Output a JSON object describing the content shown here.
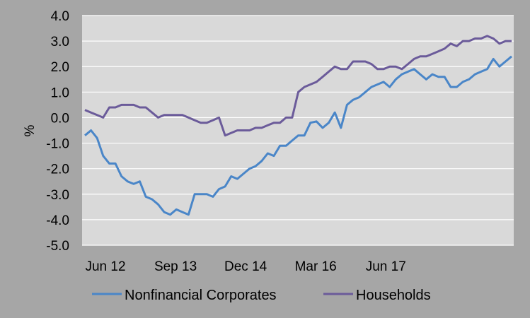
{
  "chart_data": {
    "type": "line",
    "ylabel": "%",
    "xlabel": "",
    "ylim": [
      -5.0,
      4.0
    ],
    "yticks": [
      "4.0",
      "3.0",
      "2.0",
      "1.0",
      "0.0",
      "-1.0",
      "-2.0",
      "-3.0",
      "-4.0",
      "-5.0"
    ],
    "xticks": [
      "Jun 12",
      "Sep 13",
      "Dec 14",
      "Mar 16",
      "Jun 17"
    ],
    "grid": "horizontal",
    "legend_position": "bottom",
    "colors": {
      "background": "#a6a6a6",
      "plot_area": "#d9d9d9",
      "gridline": "#ffffff"
    },
    "series": [
      {
        "name": "Nonfinancial Corporates",
        "color": "#4a86c8",
        "values": [
          -0.7,
          -0.5,
          -0.8,
          -1.5,
          -1.8,
          -1.8,
          -2.3,
          -2.5,
          -2.6,
          -2.5,
          -3.1,
          -3.2,
          -3.4,
          -3.7,
          -3.8,
          -3.6,
          -3.7,
          -3.8,
          -3.0,
          -3.0,
          -3.0,
          -3.1,
          -2.8,
          -2.7,
          -2.3,
          -2.4,
          -2.2,
          -2.0,
          -1.9,
          -1.7,
          -1.4,
          -1.5,
          -1.1,
          -1.1,
          -0.9,
          -0.7,
          -0.7,
          -0.2,
          -0.15,
          -0.4,
          -0.2,
          0.2,
          -0.4,
          0.5,
          0.7,
          0.8,
          1.0,
          1.2,
          1.3,
          1.4,
          1.2,
          1.5,
          1.7,
          1.8,
          1.9,
          1.7,
          1.5,
          1.7,
          1.6,
          1.6,
          1.2,
          1.2,
          1.4,
          1.5,
          1.7,
          1.8,
          1.9,
          2.3,
          2.0,
          2.2,
          2.4
        ]
      },
      {
        "name": "Households",
        "color": "#6b5b9a",
        "values": [
          0.3,
          0.2,
          0.1,
          0.0,
          0.4,
          0.4,
          0.5,
          0.5,
          0.5,
          0.4,
          0.4,
          0.2,
          0.0,
          0.1,
          0.1,
          0.1,
          0.1,
          0.0,
          -0.1,
          -0.2,
          -0.2,
          -0.1,
          0.0,
          -0.7,
          -0.6,
          -0.5,
          -0.5,
          -0.5,
          -0.4,
          -0.4,
          -0.3,
          -0.2,
          -0.2,
          0.0,
          0.0,
          1.0,
          1.2,
          1.3,
          1.4,
          1.6,
          1.8,
          2.0,
          1.9,
          1.9,
          2.2,
          2.2,
          2.2,
          2.1,
          1.9,
          1.9,
          2.0,
          2.0,
          1.9,
          2.1,
          2.3,
          2.4,
          2.4,
          2.5,
          2.6,
          2.7,
          2.9,
          2.8,
          3.0,
          3.0,
          3.1,
          3.1,
          3.2,
          3.1,
          2.9,
          3.0,
          3.0
        ]
      }
    ]
  }
}
